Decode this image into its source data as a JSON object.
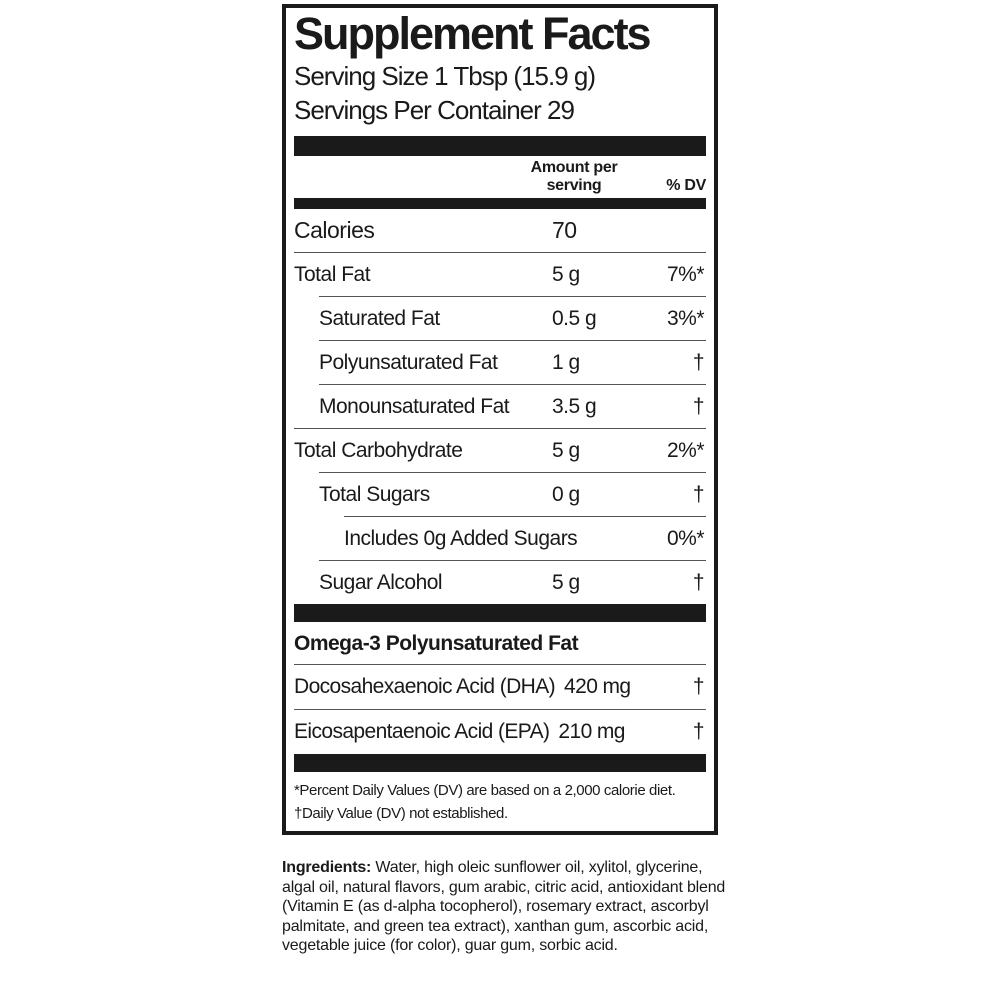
{
  "colors": {
    "ink": "#1a1a1a",
    "background": "#ffffff",
    "hairline": "#555555"
  },
  "label": {
    "title": "Supplement Facts",
    "serving_size": "Serving Size 1 Tbsp (15.9 g)",
    "servings_per_container": "Servings Per Container 29",
    "columns": {
      "amount_line1": "Amount per",
      "amount_line2": "serving",
      "dv": "% DV"
    },
    "rows": [
      {
        "name": "Calories",
        "amount": "70",
        "dv": "",
        "indent": 0
      },
      {
        "name": "Total Fat",
        "amount": "5 g",
        "dv": "7%*",
        "indent": 0
      },
      {
        "name": "Saturated Fat",
        "amount": "0.5 g",
        "dv": "3%*",
        "indent": 1
      },
      {
        "name": "Polyunsaturated Fat",
        "amount": "1 g",
        "dv": "†",
        "indent": 1
      },
      {
        "name": "Monounsaturated Fat",
        "amount": "3.5 g",
        "dv": "†",
        "indent": 1
      },
      {
        "name": "Total Carbohydrate",
        "amount": "5 g",
        "dv": "2%*",
        "indent": 0
      },
      {
        "name": "Total Sugars",
        "amount": "0 g",
        "dv": "†",
        "indent": 1
      },
      {
        "name": "Includes 0g Added Sugars",
        "amount": "",
        "dv": "0%*",
        "indent": 2
      },
      {
        "name": "Sugar Alcohol",
        "amount": "5 g",
        "dv": "†",
        "indent": 1
      }
    ],
    "omega_section": {
      "heading": "Omega-3 Polyunsaturated Fat",
      "rows": [
        {
          "name": "Docosahexaenoic Acid (DHA)",
          "amount": "420 mg",
          "dv": "†"
        },
        {
          "name": "Eicosapentaenoic Acid (EPA)",
          "amount": "210 mg",
          "dv": "†"
        }
      ]
    },
    "footnotes": [
      "*Percent Daily Values (DV) are based on a 2,000 calorie diet.",
      "†Daily Value (DV) not established."
    ]
  },
  "ingredients": {
    "label": "Ingredients:",
    "text": " Water, high oleic sunflower oil, xylitol, glycerine, algal oil, natural flavors, gum arabic, citric acid, antioxidant blend (Vitamin E (as d-alpha tocopherol), rosemary extract, ascorbyl palmitate, and green tea extract), xanthan gum, ascorbic acid, vegetable juice (for color), guar gum, sorbic acid."
  }
}
